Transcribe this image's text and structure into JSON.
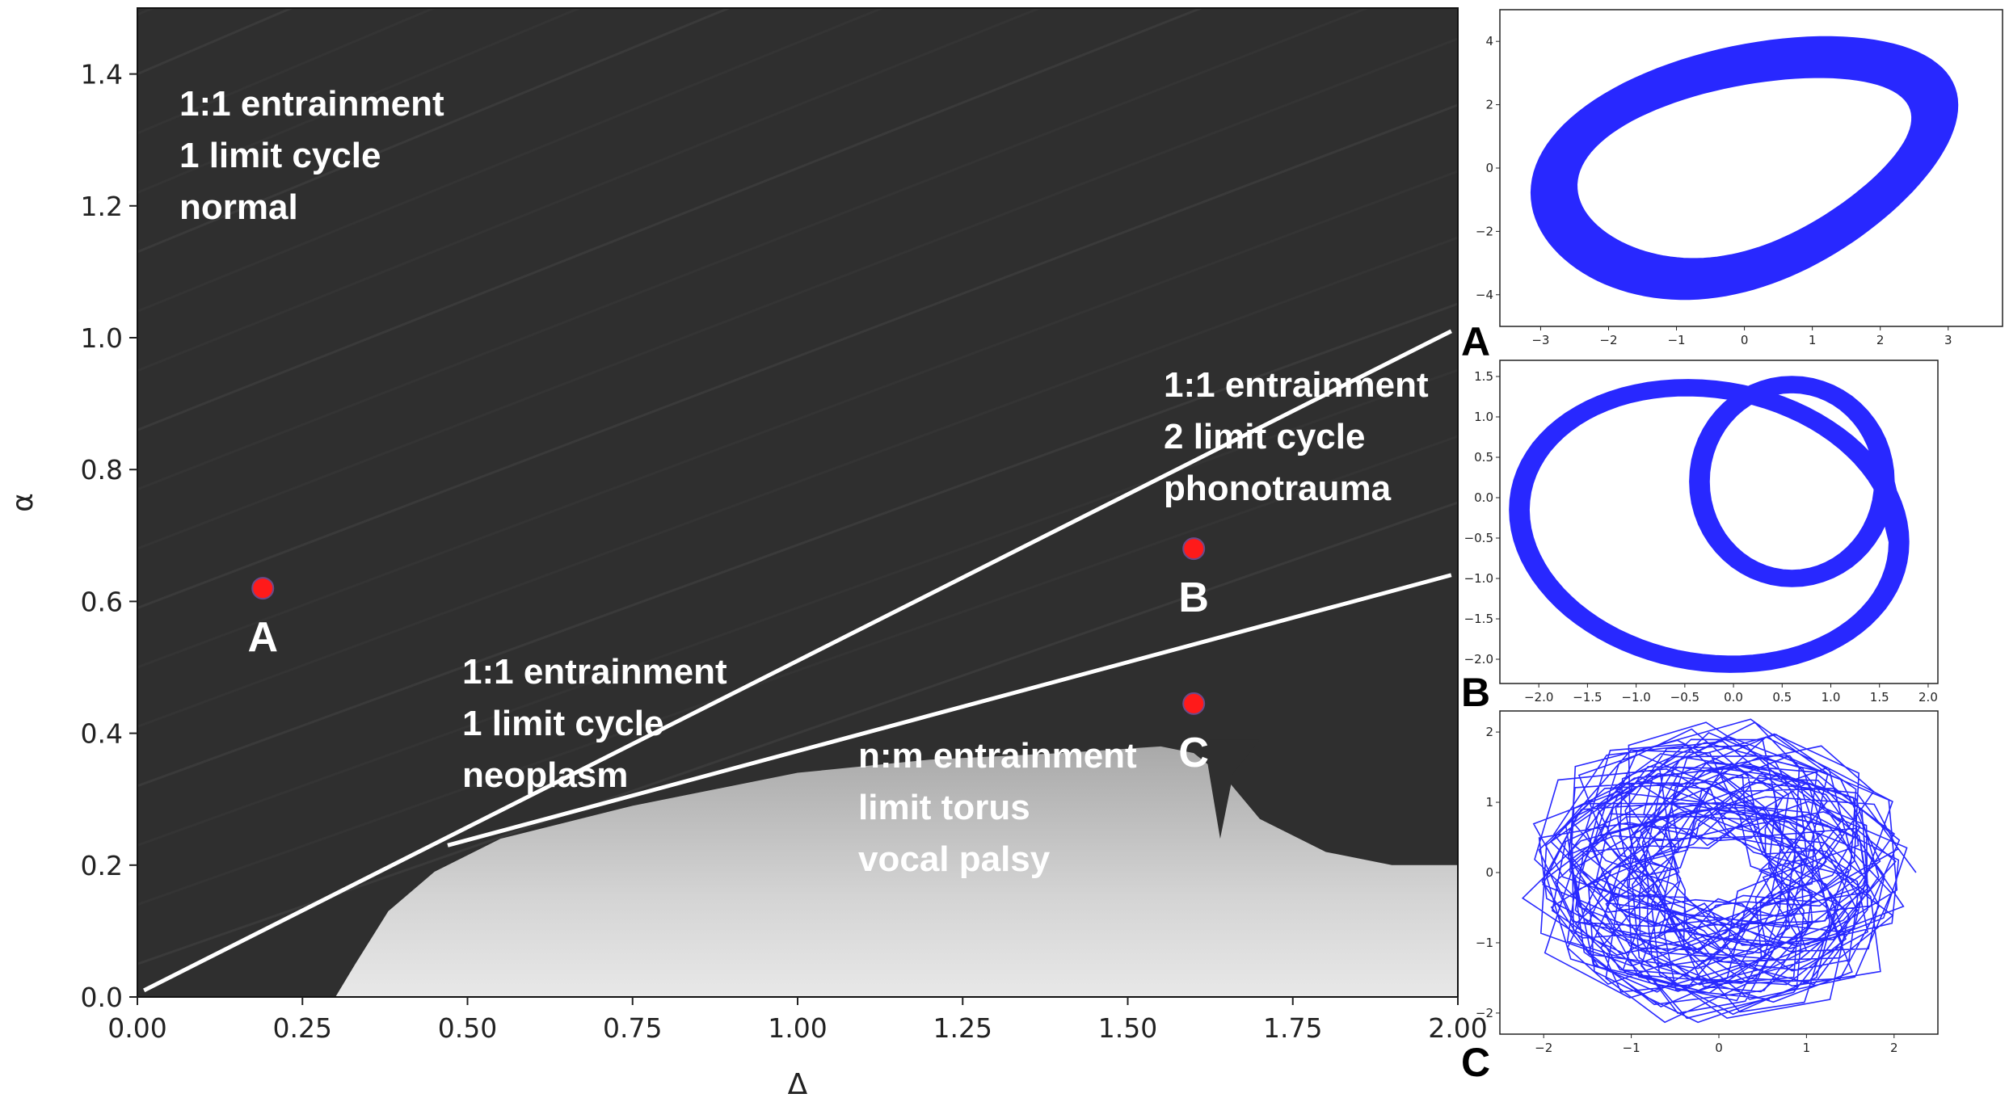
{
  "chart_data": [
    {
      "type": "heatmap",
      "title": "",
      "xlabel": "Δ",
      "ylabel": "α",
      "xlim": [
        0.0,
        2.0
      ],
      "ylim": [
        0.0,
        1.5
      ],
      "xticks": [
        "0.00",
        "0.25",
        "0.50",
        "0.75",
        "1.00",
        "1.25",
        "1.50",
        "1.75",
        "2.00"
      ],
      "yticks": [
        "0.0",
        "0.2",
        "0.4",
        "0.6",
        "0.8",
        "1.0",
        "1.2",
        "1.4"
      ],
      "colormap": "grayscale (dark = 1:1 locked, light = n:m / torus)",
      "boundary_lines": [
        {
          "name": "upper",
          "x": [
            0.01,
            1.99
          ],
          "y": [
            0.01,
            1.01
          ]
        },
        {
          "name": "lower",
          "x": [
            0.47,
            1.99
          ],
          "y": [
            0.23,
            0.64
          ]
        }
      ],
      "points": [
        {
          "label": "A",
          "x": 0.19,
          "y": 0.62,
          "color": "#ff1a1a"
        },
        {
          "label": "B",
          "x": 1.6,
          "y": 0.68,
          "color": "#ff1a1a"
        },
        {
          "label": "C",
          "x": 1.6,
          "y": 0.445,
          "color": "#ff1a1a"
        }
      ],
      "regions": [
        {
          "lines": [
            "1:1 entrainment",
            "1 limit cycle",
            "normal"
          ]
        },
        {
          "lines": [
            "1:1 entrainment",
            "2 limit cycle",
            "phonotrauma"
          ]
        },
        {
          "lines": [
            "1:1 entrainment",
            "1 limit cycle",
            "neoplasm"
          ]
        },
        {
          "lines": [
            "n:m entrainment",
            "limit torus",
            "vocal palsy"
          ]
        }
      ]
    },
    {
      "type": "line",
      "panel": "A",
      "description": "phase portrait, 1 limit cycle",
      "xlim": [
        -3.6,
        3.8
      ],
      "ylim": [
        -5.0,
        5.0
      ],
      "xticks": [
        "−3",
        "−2",
        "−1",
        "0",
        "1",
        "2",
        "3"
      ],
      "yticks": [
        "−4",
        "−2",
        "0",
        "2",
        "4"
      ],
      "color": "#1111ff"
    },
    {
      "type": "line",
      "panel": "B",
      "description": "phase portrait, 2 limit cycle",
      "xlim": [
        -2.4,
        2.1
      ],
      "ylim": [
        -2.3,
        1.7
      ],
      "xticks": [
        "−2.0",
        "−1.5",
        "−1.0",
        "−0.5",
        "0.0",
        "0.5",
        "1.0",
        "1.5",
        "2.0"
      ],
      "yticks": [
        "−2.0",
        "−1.5",
        "−1.0",
        "−0.5",
        "0.0",
        "0.5",
        "1.0",
        "1.5"
      ],
      "color": "#1111ff"
    },
    {
      "type": "line",
      "panel": "C",
      "description": "phase portrait, limit torus",
      "xlim": [
        -2.5,
        2.5
      ],
      "ylim": [
        -2.3,
        2.3
      ],
      "xticks": [
        "−2",
        "−1",
        "0",
        "1",
        "2"
      ],
      "yticks": [
        "−2",
        "−1",
        "0",
        "1",
        "2"
      ],
      "color": "#1111ff"
    }
  ]
}
